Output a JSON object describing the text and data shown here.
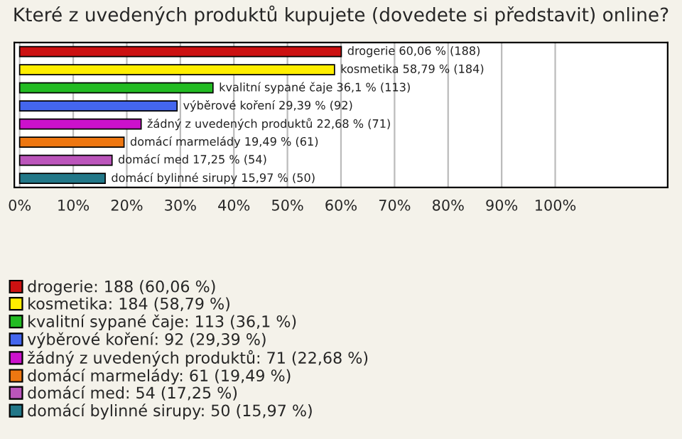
{
  "chart_data": {
    "type": "bar",
    "orientation": "horizontal",
    "title": "Které z uvedených produktů kupujete (dovedete si představit) online?",
    "categories": [
      null,
      null,
      null,
      null,
      null,
      null,
      null,
      null
    ],
    "series": [
      {
        "name": "drogerie: 188 (60,06 %)",
        "color": "#cc1111",
        "values": [
          60.06,
          null,
          null,
          null,
          null,
          null,
          null,
          null
        ],
        "value_labels": [
          "drogerie 60,06 % (188)",
          null,
          null,
          null,
          null,
          null,
          null,
          null
        ]
      },
      {
        "name": "kosmetika: 184 (58,79 %)",
        "color": "#ffee00",
        "values": [
          null,
          58.79,
          null,
          null,
          null,
          null,
          null,
          null
        ],
        "value_labels": [
          null,
          "kosmetika 58,79 % (184)",
          null,
          null,
          null,
          null,
          null,
          null
        ]
      },
      {
        "name": "kvalitní sypané čaje: 113 (36,1 %)",
        "color": "#22bb22",
        "values": [
          null,
          null,
          36.1,
          null,
          null,
          null,
          null,
          null
        ],
        "value_labels": [
          null,
          null,
          "kvalitní sypané čaje 36,1 % (113)",
          null,
          null,
          null,
          null,
          null
        ]
      },
      {
        "name": "výběrové koření: 92 (29,39 %)",
        "color": "#4466ee",
        "values": [
          null,
          null,
          null,
          29.39,
          null,
          null,
          null,
          null
        ],
        "value_labels": [
          null,
          null,
          null,
          "výběrové koření 29,39 % (92)",
          null,
          null,
          null,
          null
        ]
      },
      {
        "name": "žádný z uvedených produktů: 71 (22,68 %)",
        "color": "#cc11cc",
        "values": [
          null,
          null,
          null,
          null,
          22.68,
          null,
          null,
          null
        ],
        "value_labels": [
          null,
          null,
          null,
          null,
          "žádný z uvedených produktů 22,68 % (71)",
          null,
          null,
          null
        ]
      },
      {
        "name": "domácí marmelády: 61 (19,49 %)",
        "color": "#ee7711",
        "values": [
          null,
          null,
          null,
          null,
          null,
          19.49,
          null,
          null
        ],
        "value_labels": [
          null,
          null,
          null,
          null,
          null,
          "domácí marmelády 19,49 % (61)",
          null,
          null
        ]
      },
      {
        "name": "domácí med: 54 (17,25 %)",
        "color": "#bb55bb",
        "values": [
          null,
          null,
          null,
          null,
          null,
          null,
          17.25,
          null
        ],
        "value_labels": [
          null,
          null,
          null,
          null,
          null,
          null,
          "domácí med 17,25 % (54)",
          null
        ]
      },
      {
        "name": "domácí bylinné sirupy: 50 (15,97 %)",
        "color": "#227788",
        "values": [
          null,
          null,
          null,
          null,
          null,
          null,
          null,
          15.97
        ],
        "value_labels": [
          null,
          null,
          null,
          null,
          null,
          null,
          null,
          "domácí bylinné sirupy 15,97 % (50)"
        ]
      }
    ],
    "xlim": [
      -1,
      121
    ],
    "xticks": [
      {
        "value": 0,
        "label": "0%"
      },
      {
        "value": 10,
        "label": "10%"
      },
      {
        "value": 20,
        "label": "20%"
      },
      {
        "value": 30,
        "label": "30%"
      },
      {
        "value": 40,
        "label": "40%"
      },
      {
        "value": 50,
        "label": "50%"
      },
      {
        "value": 60,
        "label": "60%"
      },
      {
        "value": 70,
        "label": "70%"
      },
      {
        "value": 80,
        "label": "80%"
      },
      {
        "value": 90,
        "label": "90%"
      },
      {
        "value": 100,
        "label": "100%"
      }
    ],
    "grid": "x",
    "legend": "bottom"
  }
}
